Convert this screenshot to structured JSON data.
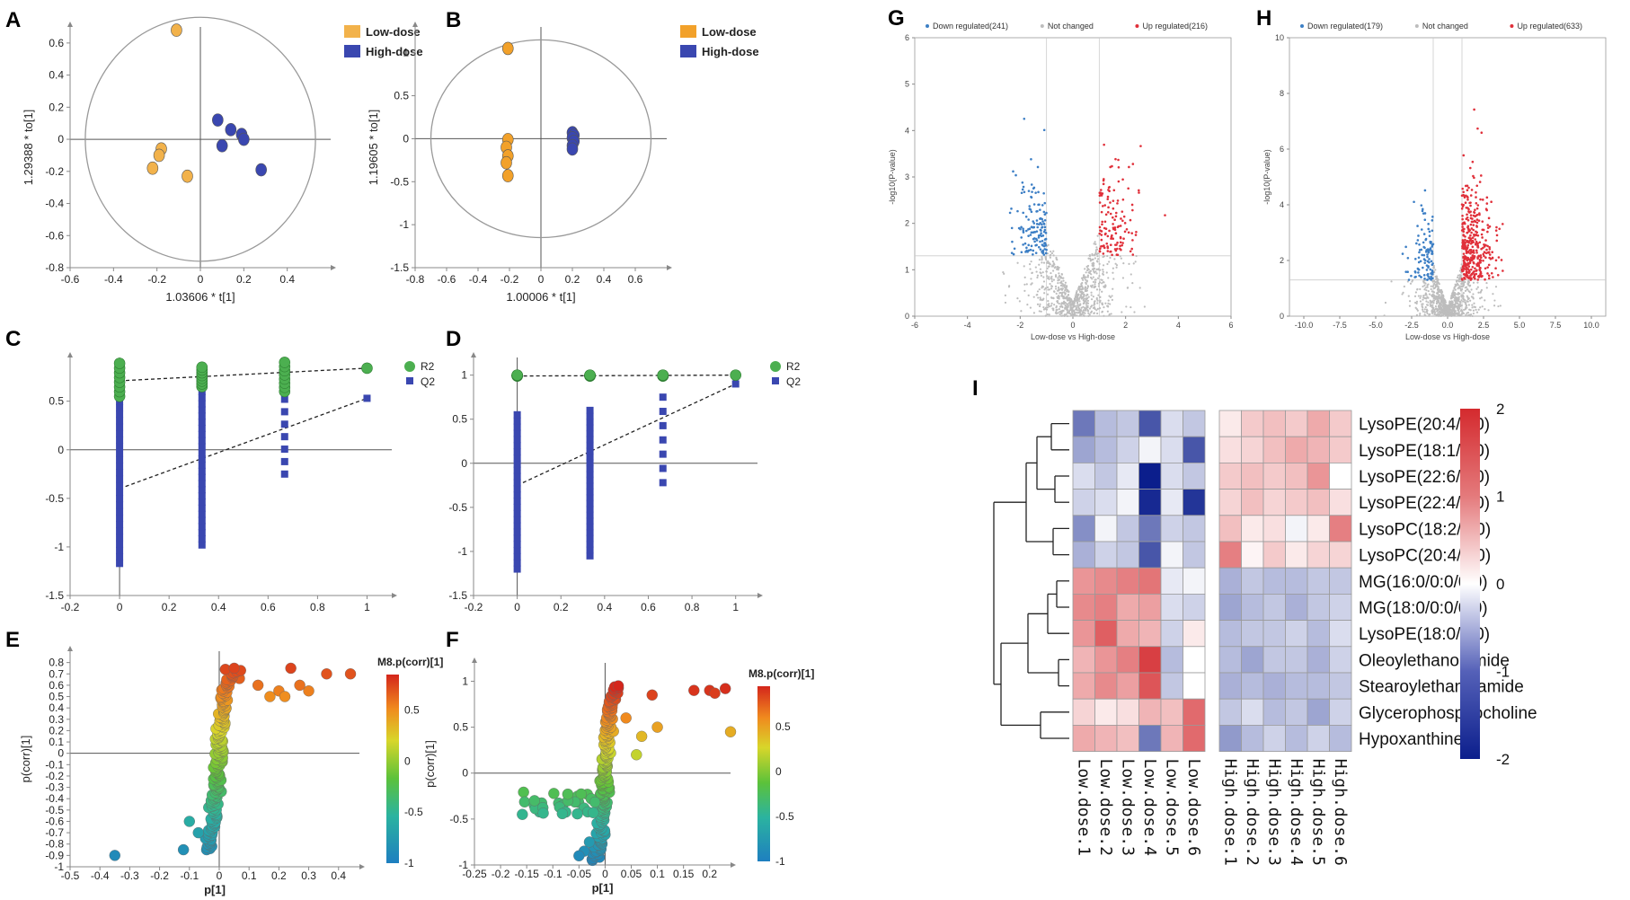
{
  "figure": {
    "panels": [
      "A",
      "B",
      "C",
      "D",
      "E",
      "F",
      "G",
      "H",
      "I"
    ]
  },
  "colors": {
    "low": "#F2B24B",
    "high": "#3A47B0",
    "r2": "#4CAF50",
    "q2": "#3A47B0",
    "down": "#3D7FC5",
    "up": "#E0303A",
    "notchanged": "#BDBDBD",
    "heat_low": "#0B1E8C",
    "heat_mid": "#FFFFFF",
    "heat_high": "#D42A2E"
  },
  "chart_data": [
    {
      "panel": "A",
      "type": "scatter",
      "xlabel": "1.03606 * t[1]",
      "ylabel": "1.29388 * to[1]",
      "xlim": [
        -0.6,
        0.6
      ],
      "ylim": [
        -0.8,
        0.7
      ],
      "xticks": [
        "-0.6",
        "-0.4",
        "-0.2",
        "0",
        "0.2",
        "0.4"
      ],
      "yticks": [
        "-0.8",
        "-0.6",
        "-0.4",
        "-0.2",
        "0",
        "0.2",
        "0.4",
        "0.6"
      ],
      "ellipse": {
        "rx": 0.53,
        "ry": 0.76
      },
      "series": [
        {
          "name": "Low-dose",
          "color": "#F2B24B",
          "points": [
            [
              -0.11,
              0.68
            ],
            [
              -0.18,
              -0.06
            ],
            [
              -0.19,
              -0.1
            ],
            [
              -0.22,
              -0.18
            ],
            [
              -0.06,
              -0.23
            ]
          ]
        },
        {
          "name": "High-dose",
          "color": "#3A47B0",
          "points": [
            [
              0.08,
              0.12
            ],
            [
              0.14,
              0.06
            ],
            [
              0.19,
              0.03
            ],
            [
              0.2,
              0.0
            ],
            [
              0.1,
              -0.04
            ],
            [
              0.28,
              -0.19
            ]
          ]
        }
      ]
    },
    {
      "panel": "B",
      "type": "scatter",
      "xlabel": "1.00006 * t[1]",
      "ylabel": "1.19605 * to[1]",
      "xlim": [
        -0.8,
        0.8
      ],
      "ylim": [
        -1.5,
        1.3
      ],
      "xticks": [
        "-0.8",
        "-0.6",
        "-0.4",
        "-0.2",
        "0",
        "0.2",
        "0.4",
        "0.6"
      ],
      "yticks": [
        "-1.5",
        "-1",
        "-0.5",
        "0",
        "0.5",
        "1"
      ],
      "ellipse": {
        "rx": 0.7,
        "ry": 1.15
      },
      "series": [
        {
          "name": "Low-dose",
          "color": "#F2A12A",
          "points": [
            [
              -0.21,
              1.05
            ],
            [
              -0.21,
              -0.01
            ],
            [
              -0.22,
              -0.1
            ],
            [
              -0.21,
              -0.2
            ],
            [
              -0.22,
              -0.28
            ],
            [
              -0.21,
              -0.43
            ]
          ]
        },
        {
          "name": "High-dose",
          "color": "#3A47B0",
          "points": [
            [
              0.2,
              0.07
            ],
            [
              0.21,
              0.04
            ],
            [
              0.2,
              0.01
            ],
            [
              0.21,
              -0.03
            ],
            [
              0.2,
              -0.08
            ],
            [
              0.2,
              -0.12
            ]
          ]
        }
      ]
    },
    {
      "panel": "C",
      "type": "scatter",
      "xlim": [
        -0.2,
        1.1
      ],
      "ylim": [
        -1.5,
        0.95
      ],
      "xticks": [
        "-0.2",
        "0",
        "0.2",
        "0.4",
        "0.6",
        "0.8",
        "1"
      ],
      "yticks": [
        "-1.5",
        "-1",
        "-0.5",
        "0",
        "0.5"
      ],
      "legend": [
        "R2",
        "Q2"
      ],
      "r2": {
        "x": [
          0,
          0.333,
          0.667
        ],
        "ymin": [
          0.55,
          0.65,
          0.6
        ],
        "ymax": [
          0.89,
          0.85,
          0.9
        ],
        "final": [
          1,
          0.84
        ]
      },
      "q2": {
        "x": [
          0,
          0.333,
          0.667
        ],
        "ymin": [
          -1.17,
          -0.98,
          -0.25
        ],
        "ymax": [
          0.5,
          0.6,
          0.52
        ],
        "final": [
          1,
          0.53
        ]
      },
      "r2_line": [
        [
          0,
          0.71
        ],
        [
          1,
          0.84
        ]
      ],
      "q2_line": [
        [
          0,
          -0.4
        ],
        [
          1,
          0.53
        ]
      ]
    },
    {
      "panel": "D",
      "type": "scatter",
      "xlim": [
        -0.2,
        1.1
      ],
      "ylim": [
        -1.5,
        1.2
      ],
      "xticks": [
        "-0.2",
        "0",
        "0.2",
        "0.4",
        "0.6",
        "0.8",
        "1"
      ],
      "yticks": [
        "-1.5",
        "-1",
        "-0.5",
        "0",
        "0.5",
        "1"
      ],
      "legend": [
        "R2",
        "Q2"
      ],
      "r2": {
        "x": [
          0,
          0.333,
          0.667
        ],
        "ymin": [
          0.99,
          0.99,
          0.99
        ],
        "ymax": [
          1.0,
          1.0,
          1.0
        ],
        "final": [
          1,
          1.0
        ]
      },
      "q2": {
        "x": [
          0,
          0.333,
          0.667
        ],
        "ymin": [
          -1.2,
          -1.05,
          -0.22
        ],
        "ymax": [
          0.55,
          0.6,
          0.75
        ],
        "final": [
          1,
          0.9
        ]
      },
      "r2_line": [
        [
          0,
          0.99
        ],
        [
          1,
          1.0
        ]
      ],
      "q2_line": [
        [
          0,
          -0.25
        ],
        [
          1,
          0.9
        ]
      ]
    },
    {
      "panel": "E",
      "type": "scatter",
      "xlabel": "p[1]",
      "ylabel": "p(corr)[1]",
      "xlim": [
        -0.5,
        0.47
      ],
      "ylim": [
        -1.0,
        0.9
      ],
      "xticks": [
        "-0.5",
        "-0.4",
        "-0.3",
        "-0.2",
        "-0.1",
        "0",
        "0.1",
        "0.2",
        "0.3",
        "0.4"
      ],
      "yticks": [
        "-1",
        "-0.9",
        "-0.8",
        "-0.7",
        "-0.6",
        "-0.5",
        "-0.4",
        "-0.3",
        "-0.2",
        "-0.1",
        "0",
        "0.1",
        "0.2",
        "0.3",
        "0.4",
        "0.5",
        "0.6",
        "0.7",
        "0.8"
      ],
      "colorbar": {
        "title": "M8.p(corr)[1]",
        "ticks": [
          "0.5",
          "0",
          "-0.5",
          "-1"
        ],
        "range": [
          -1,
          0.85
        ]
      }
    },
    {
      "panel": "F",
      "type": "scatter",
      "xlabel": "p[1]",
      "ylabel": "p(corr)[1]",
      "xlim": [
        -0.25,
        0.24
      ],
      "ylim": [
        -1.0,
        1.2
      ],
      "xticks": [
        "-0.25",
        "-0.2",
        "-0.15",
        "-0.1",
        "-0.05",
        "0",
        "0.05",
        "0.1",
        "0.15",
        "0.2"
      ],
      "yticks": [
        "-1",
        "-0.5",
        "0",
        "0.5",
        "1"
      ],
      "colorbar": {
        "title": "M8.p(corr)[1]",
        "ticks": [
          "0.5",
          "0",
          "-0.5",
          "-1"
        ],
        "range": [
          -1,
          0.95
        ]
      }
    },
    {
      "panel": "G",
      "type": "scatter",
      "xlabel": "Low-dose vs High-dose",
      "ylabel": "-log10(P-value)",
      "xlim": [
        -6,
        6
      ],
      "ylim": [
        0,
        6
      ],
      "xticks": [
        "-6",
        "-4",
        "-2",
        "0",
        "2",
        "4",
        "6"
      ],
      "yticks": [
        "0",
        "1",
        "2",
        "3",
        "4",
        "5",
        "6"
      ],
      "legend": [
        "Down regulated(241)",
        "Not changed",
        "Up regulated(216)"
      ],
      "fc_threshold": 1,
      "p_threshold": 1.3
    },
    {
      "panel": "H",
      "type": "scatter",
      "xlabel": "Low-dose vs High-dose",
      "ylabel": "-log10(P-value)",
      "xlim": [
        -11,
        11
      ],
      "ylim": [
        0,
        10
      ],
      "xticks": [
        "-10.0",
        "-7.5",
        "-5.0",
        "-2.5",
        "0.0",
        "2.5",
        "5.0",
        "7.5",
        "10.0"
      ],
      "yticks": [
        "0",
        "2",
        "4",
        "6",
        "8",
        "10"
      ],
      "legend": [
        "Down regulated(179)",
        "Not changed",
        "Up regulated(633)"
      ],
      "fc_threshold": 1,
      "p_threshold": 1.3
    },
    {
      "panel": "I",
      "type": "heatmap",
      "rows": [
        "LysoPE(20:4/0:0)",
        "LysoPE(18:1/0:0)",
        "LysoPE(22:6/0:0)",
        "LysoPE(22:4/0:0)",
        "LysoPC(18:2/0:0)",
        "LysoPC(20:4/0:0)",
        "MG(16:0/0:0/0:0)",
        "MG(18:0/0:0/0:0)",
        "LysoPE(18:0/0:0)",
        "Oleoylethanolamide",
        "Stearoylethanolamide",
        "Glycerophosphocholine",
        "Hypoxanthine"
      ],
      "columns": [
        "Low.dose.1",
        "Low.dose.2",
        "Low.dose.3",
        "Low.dose.4",
        "Low.dose.5",
        "Low.dose.6",
        "High.dose.1",
        "High.dose.2",
        "High.dose.3",
        "High.dose.4",
        "High.dose.5",
        "High.dose.6"
      ],
      "values": [
        [
          -1.2,
          -0.6,
          -0.5,
          -1.5,
          -0.3,
          -0.5,
          0.2,
          0.5,
          0.6,
          0.5,
          0.8,
          0.5
        ],
        [
          -0.8,
          -0.6,
          -0.4,
          -0.1,
          -0.3,
          -1.5,
          0.3,
          0.4,
          0.6,
          0.8,
          0.7,
          0.5
        ],
        [
          -0.3,
          -0.5,
          -0.2,
          -2.0,
          -0.3,
          -0.5,
          0.5,
          0.6,
          0.5,
          0.6,
          1.0,
          0.0
        ],
        [
          -0.4,
          -0.3,
          -0.1,
          -1.9,
          -0.2,
          -1.8,
          0.4,
          0.6,
          0.4,
          0.5,
          0.6,
          0.3
        ],
        [
          -1.0,
          -0.1,
          -0.5,
          -1.2,
          -0.4,
          -0.5,
          0.6,
          0.2,
          0.3,
          -0.1,
          0.2,
          1.2
        ],
        [
          -0.7,
          -0.4,
          -0.5,
          -1.5,
          -0.1,
          -0.5,
          1.2,
          0.1,
          0.5,
          0.2,
          0.4,
          0.4
        ],
        [
          1.0,
          1.1,
          1.2,
          1.3,
          -0.2,
          -0.1,
          -0.7,
          -0.5,
          -0.6,
          -0.6,
          -0.5,
          -0.5
        ],
        [
          1.1,
          1.2,
          0.8,
          0.9,
          -0.3,
          -0.4,
          -0.8,
          -0.6,
          -0.5,
          -0.7,
          -0.5,
          -0.4
        ],
        [
          1.0,
          1.5,
          0.8,
          0.7,
          -0.4,
          0.2,
          -0.6,
          -0.5,
          -0.5,
          -0.4,
          -0.6,
          -0.3
        ],
        [
          0.7,
          1.0,
          1.2,
          1.8,
          -0.6,
          0.0,
          -0.6,
          -0.8,
          -0.5,
          -0.5,
          -0.7,
          -0.4
        ],
        [
          0.8,
          1.1,
          0.9,
          1.6,
          -0.5,
          0.0,
          -0.7,
          -0.6,
          -0.7,
          -0.6,
          -0.6,
          -0.5
        ],
        [
          0.4,
          0.2,
          0.3,
          0.7,
          0.6,
          1.4,
          -0.5,
          -0.3,
          -0.6,
          -0.5,
          -0.8,
          -0.4
        ],
        [
          0.8,
          0.7,
          0.6,
          -1.2,
          0.7,
          1.4,
          -0.9,
          -0.6,
          -0.4,
          -0.6,
          -0.4,
          -0.6
        ]
      ],
      "colorbar_ticks": [
        "2",
        "1",
        "0",
        "-1",
        "-2"
      ],
      "range": [
        -2,
        2
      ]
    }
  ]
}
